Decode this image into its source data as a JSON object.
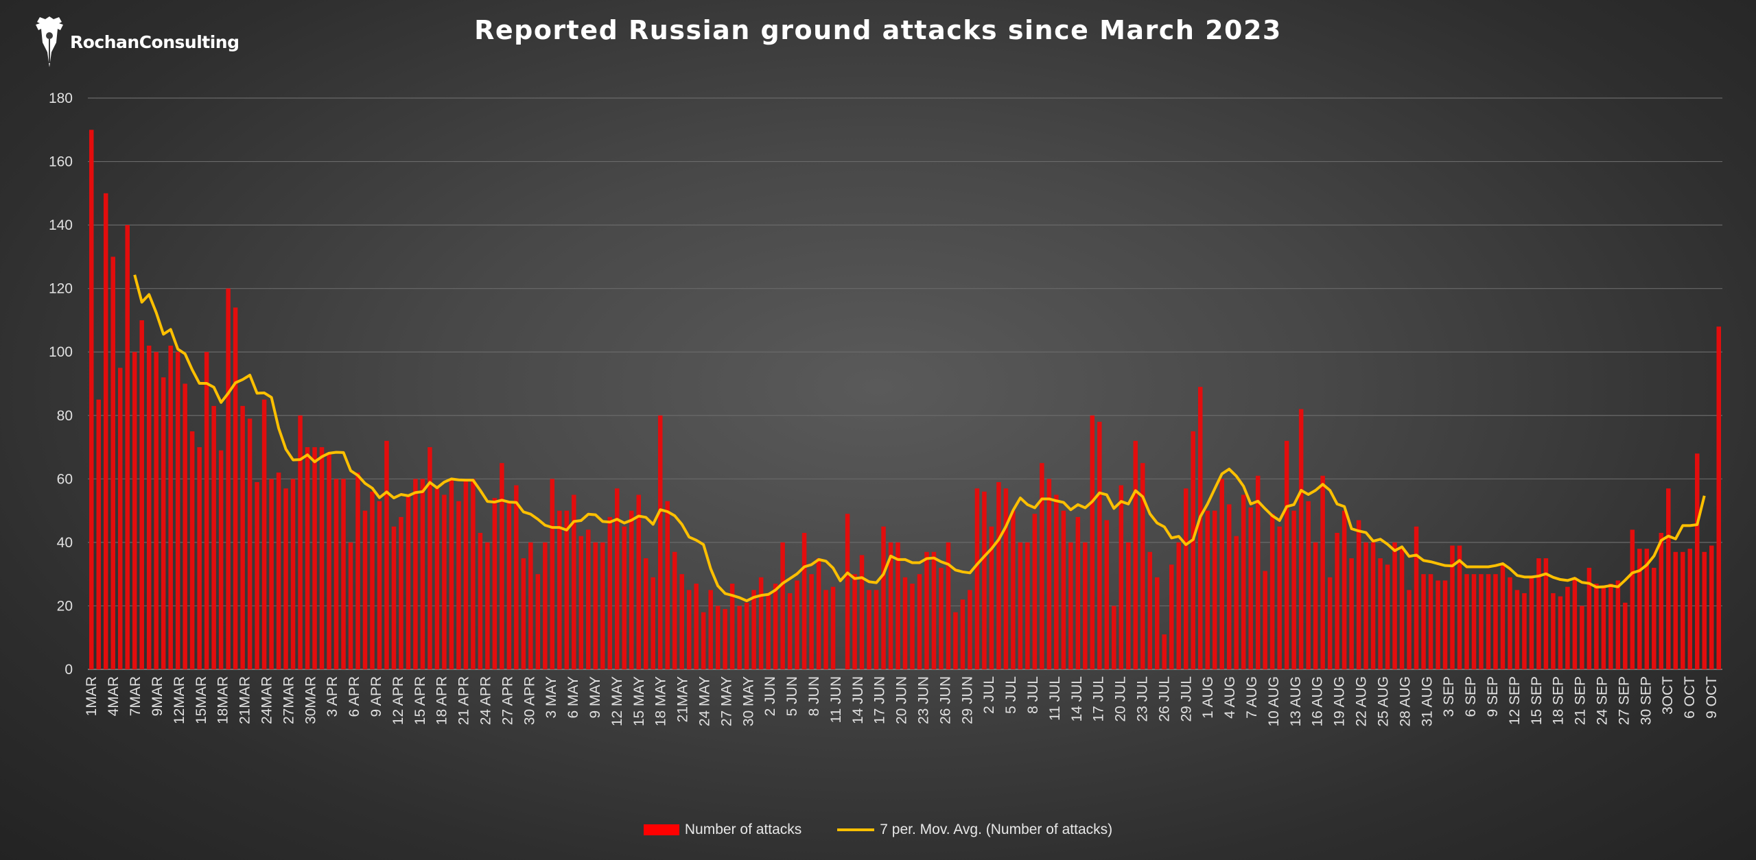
{
  "logo": {
    "text": "RochanConsulting"
  },
  "colors": {
    "bar": "#e30d0d",
    "line": "#ffc000",
    "grid": "#6a6a6a",
    "text": "#e0e0e0"
  },
  "chart_data": {
    "type": "bar",
    "title": "Reported Russian ground attacks since March 2023",
    "xlabel": "",
    "ylabel": "",
    "ylim": [
      0,
      180
    ],
    "yticks": [
      0,
      20,
      40,
      60,
      80,
      100,
      120,
      140,
      160,
      180
    ],
    "grid": true,
    "legend_position": "bottom",
    "x_start": "2023-03-01",
    "x_end": "2023-10-10",
    "x_tick_labels": [
      "1MAR",
      "4MAR",
      "7MAR",
      "9MAR",
      "12MAR",
      "15MAR",
      "18MAR",
      "21MAR",
      "24MAR",
      "27MAR",
      "30MAR",
      "3 APR",
      "6 APR",
      "9 APR",
      "12 APR",
      "15 APR",
      "18 APR",
      "21 APR",
      "24 APR",
      "27 APR",
      "30 APR",
      "3 MAY",
      "6 MAY",
      "9 MAY",
      "12 MAY",
      "15 MAY",
      "18 MAY",
      "21MAY",
      "24 MAY",
      "27 MAY",
      "30 MAY",
      "2 JUN",
      "5 JUN",
      "8 JUN",
      "11 JUN",
      "14 JUN",
      "17 JUN",
      "20 JUN",
      "23 JUN",
      "26 JUN",
      "29 JUN",
      "2 JUL",
      "5 JUL",
      "8 JUL",
      "11 JUL",
      "14 JUL",
      "17 JUL",
      "20 JUL",
      "23 JUL",
      "26 JUL",
      "29 JUL",
      "1 AUG",
      "4 AUG",
      "7 AUG",
      "10 AUG",
      "13 AUG",
      "16 AUG",
      "19 AUG",
      "22 AUG",
      "25 AUG",
      "28 AUG",
      "31 AUG",
      "3 SEP",
      "6 SEP",
      "9 SEP",
      "12 SEP",
      "15 SEP",
      "18 SEP",
      "21 SEP",
      "24 SEP",
      "27 SEP",
      "30 SEP",
      "3OCT",
      "6 OCT",
      "9 OCT"
    ],
    "series": [
      {
        "name": "Number of attacks",
        "type": "bar",
        "values": [
          170,
          85,
          150,
          130,
          95,
          140,
          100,
          110,
          102,
          100,
          92,
          102,
          100,
          90,
          75,
          70,
          100,
          83,
          69,
          120,
          114,
          83,
          79,
          59,
          85,
          60,
          62,
          57,
          60,
          80,
          70,
          70,
          70,
          68,
          60,
          60,
          40,
          62,
          50,
          56,
          53,
          72,
          45,
          48,
          55,
          60,
          60,
          70,
          57,
          55,
          60,
          53,
          60,
          60,
          43,
          40,
          54,
          65,
          53,
          58,
          35,
          40,
          30,
          40,
          60,
          50,
          50,
          55,
          42,
          44,
          40,
          40,
          48,
          57,
          45,
          50,
          55,
          35,
          29,
          80,
          53,
          37,
          30,
          25,
          27,
          18,
          25,
          20,
          19,
          27,
          20,
          21,
          25,
          29,
          24,
          27,
          40,
          24,
          28,
          43,
          30,
          35,
          25,
          26,
          0,
          49,
          30,
          36,
          25,
          25,
          45,
          40,
          40,
          29,
          27,
          30,
          37,
          37,
          32,
          40,
          18,
          22,
          25,
          57,
          56,
          45,
          59,
          57,
          50,
          40,
          40,
          49,
          65,
          60,
          55,
          50,
          40,
          48,
          40,
          80,
          78,
          47,
          20,
          58,
          40,
          72,
          65,
          37,
          29,
          11,
          33,
          40,
          57,
          75,
          89,
          50,
          50,
          60,
          52,
          42,
          55,
          51,
          61,
          31,
          49,
          45,
          72,
          50,
          82,
          53,
          40,
          61,
          29,
          43,
          50,
          35,
          47,
          40,
          40,
          35,
          33,
          40,
          38,
          25,
          45,
          30,
          30,
          28,
          28,
          39,
          39,
          30,
          30,
          30,
          30,
          30,
          33,
          29,
          25,
          24,
          29,
          35,
          35,
          24,
          23,
          26,
          29,
          20,
          32,
          27,
          26,
          27,
          28,
          21,
          44,
          38,
          38,
          32,
          43,
          57,
          37,
          37,
          38,
          68,
          37,
          39,
          108
        ]
      },
      {
        "name": "7 per. Mov. Avg. (Number of attacks)",
        "type": "line",
        "values": [
          null,
          null,
          null,
          null,
          null,
          null,
          124.3,
          115.7,
          118.1,
          112.4,
          105.6,
          107.1,
          100.9,
          99.4,
          94.4,
          90.1,
          90.1,
          88.9,
          84.1,
          87.0,
          90.3,
          91.3,
          92.7,
          87.0,
          87.1,
          85.7,
          76.0,
          69.4,
          66.0,
          66.1,
          67.6,
          65.4,
          67.0,
          68.1,
          68.4,
          68.3,
          62.6,
          61.1,
          58.6,
          57.1,
          54.1,
          55.9,
          54.0,
          55.1,
          54.7,
          55.7,
          56.0,
          58.9,
          57.2,
          59.0,
          60.0,
          59.7,
          59.6,
          59.6,
          56.4,
          52.9,
          52.7,
          53.3,
          52.7,
          52.6,
          49.6,
          48.9,
          47.3,
          45.4,
          44.7,
          44.7,
          43.9,
          46.6,
          46.9,
          48.9,
          48.7,
          46.6,
          46.4,
          47.3,
          46.1,
          47.0,
          48.3,
          47.9,
          45.7,
          50.3,
          49.7,
          48.4,
          45.7,
          41.7,
          40.7,
          39.3,
          31.7,
          26.3,
          23.9,
          23.3,
          22.6,
          21.6,
          22.7,
          23.3,
          23.6,
          25.0,
          27.1,
          28.6,
          30.1,
          32.3,
          33.0,
          34.6,
          34.1,
          31.9,
          27.9,
          30.4,
          28.6,
          28.9,
          27.6,
          27.3,
          30.0,
          35.7,
          34.6,
          34.6,
          33.6,
          33.6,
          34.9,
          35.1,
          33.9,
          33.1,
          31.3,
          30.7,
          30.4,
          33.1,
          35.6,
          38.0,
          40.9,
          45.0,
          50.1,
          54.0,
          51.9,
          50.9,
          53.7,
          53.7,
          53.1,
          52.6,
          50.3,
          51.9,
          50.9,
          52.9,
          55.6,
          55.0,
          50.7,
          52.9,
          52.1,
          56.3,
          54.4,
          49.0,
          46.1,
          44.9,
          41.4,
          41.9,
          39.3,
          40.9,
          48.1,
          52.1,
          56.9,
          61.6,
          63.1,
          60.9,
          57.7,
          52.1,
          53.0,
          50.6,
          48.4,
          46.9,
          51.3,
          51.9,
          56.4,
          55.1,
          56.4,
          58.3,
          56.4,
          52.1,
          51.3,
          44.3,
          43.6,
          43.1,
          40.4,
          41.0,
          39.4,
          37.4,
          38.6,
          35.6,
          36.0,
          34.3,
          33.9,
          33.3,
          32.7,
          32.6,
          34.3,
          32.3,
          32.3,
          32.3,
          32.3,
          32.7,
          33.3,
          31.7,
          29.6,
          29.1,
          29.1,
          29.4,
          30.1,
          29.0,
          28.3,
          28.0,
          28.7,
          27.4,
          27.1,
          25.9,
          26.0,
          26.4,
          26.0,
          28.1,
          30.4,
          31.1,
          32.9,
          35.7,
          40.6,
          42.0,
          41.1,
          45.3,
          45.3,
          45.6,
          54.7
        ]
      }
    ]
  }
}
